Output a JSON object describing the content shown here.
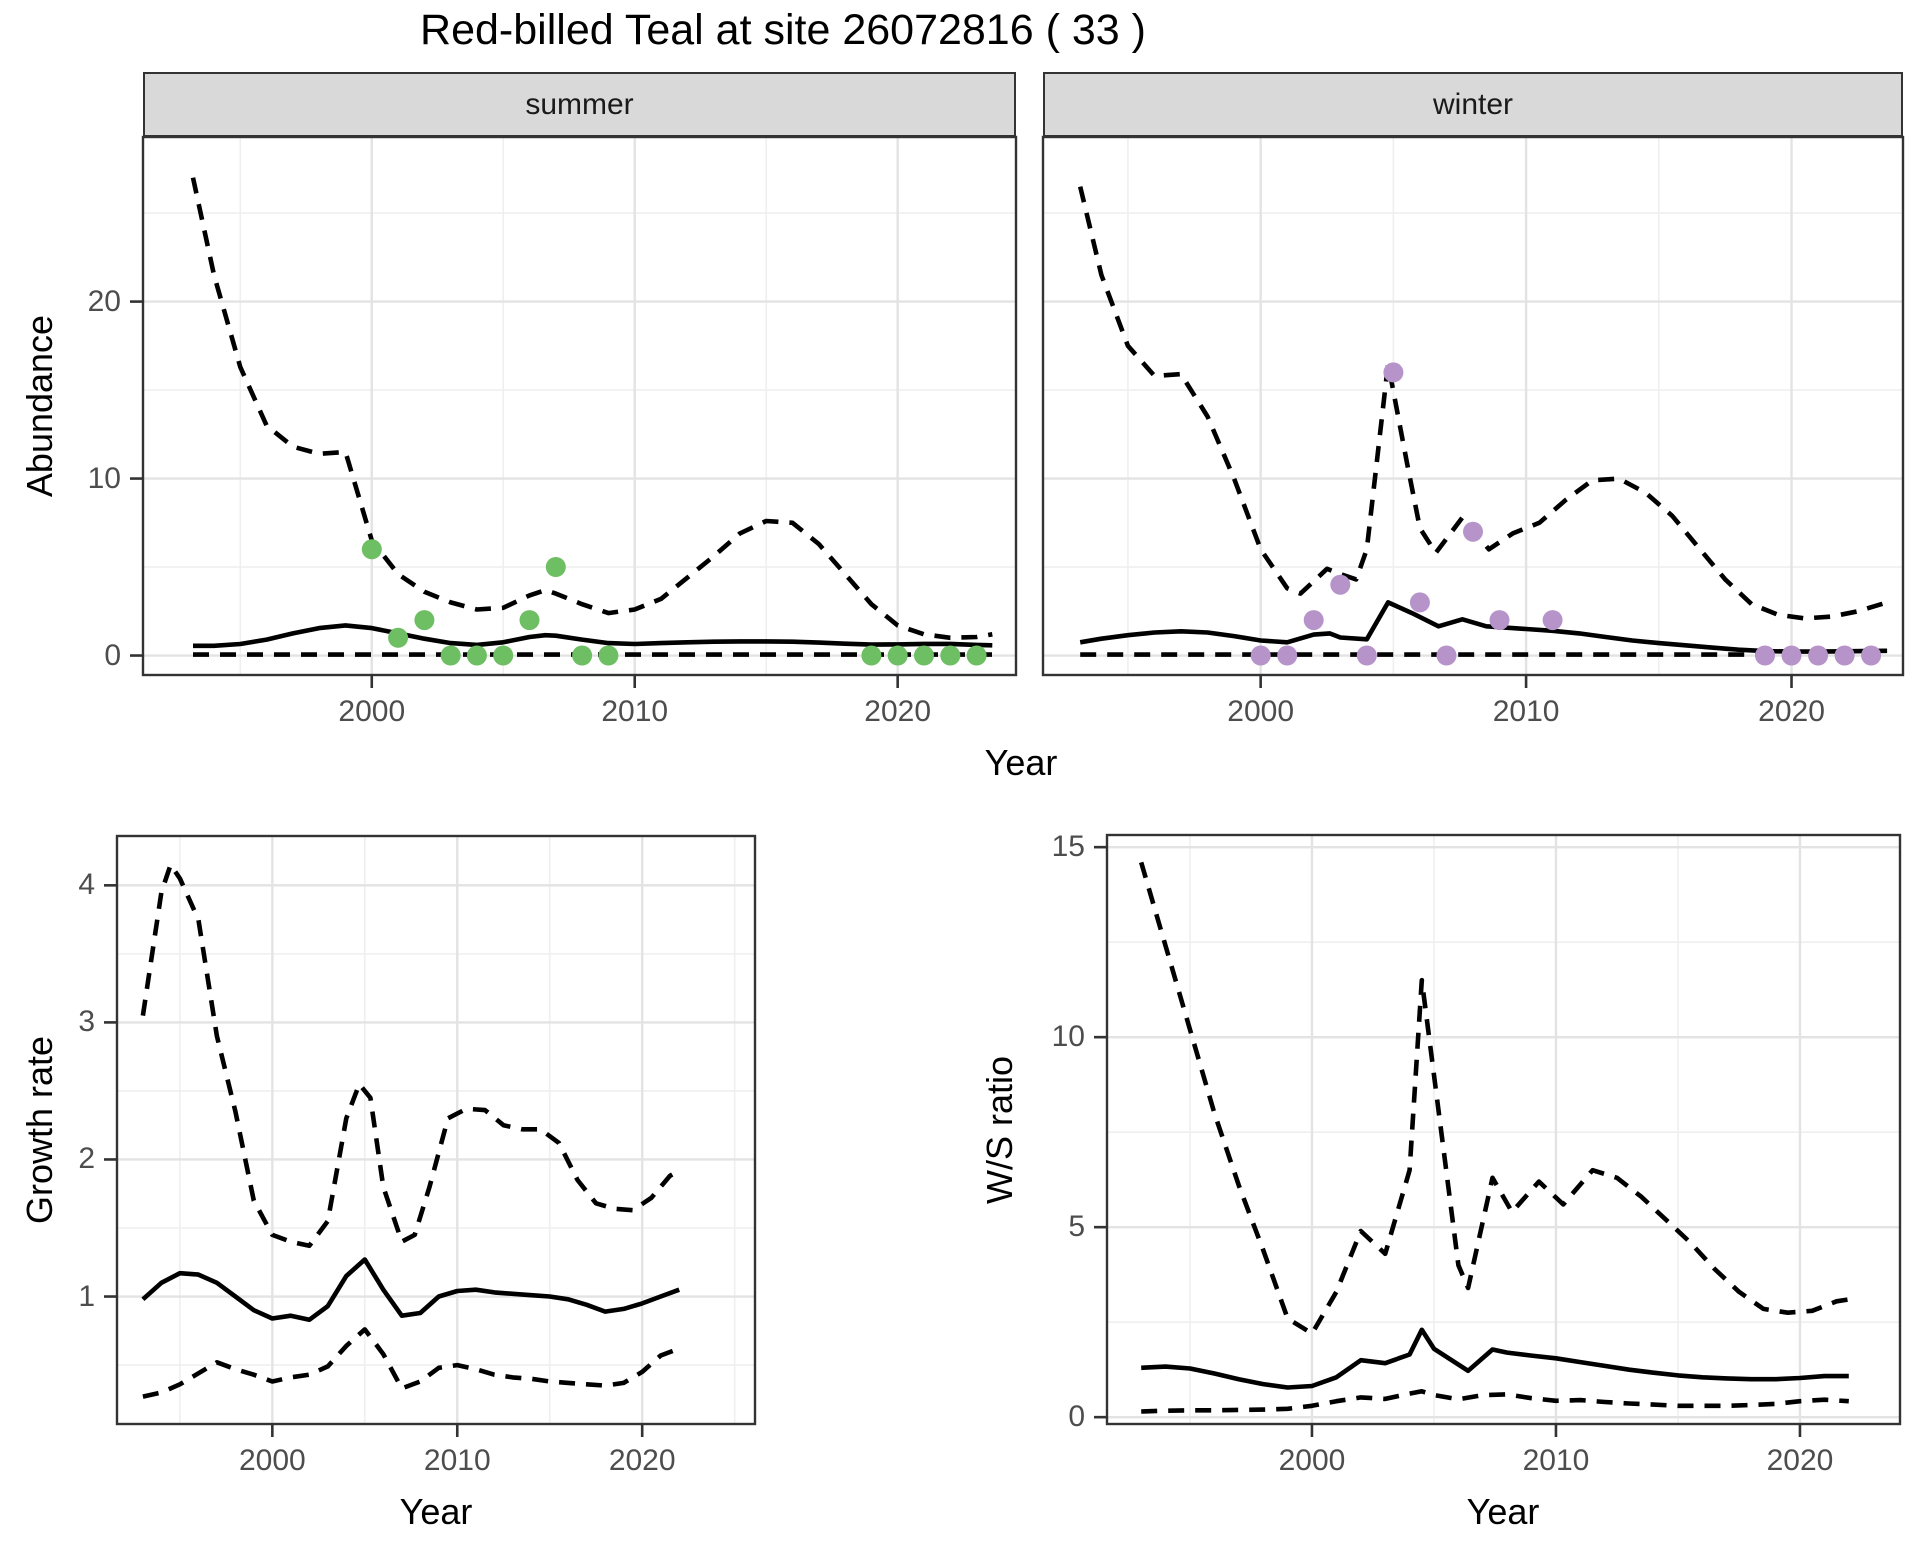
{
  "title": "Red-billed Teal at site 26072816 ( 33 )",
  "facets": {
    "summer_label": "summer",
    "winter_label": "winter"
  },
  "axis_titles": {
    "abundance": "Abundance",
    "growth": "Growth rate",
    "ws": "W/S ratio",
    "year": "Year"
  },
  "colors": {
    "summer_points": "#6EBE64",
    "winter_points": "#B694CA",
    "line": "#000000",
    "strip_bg": "#D9D9D9",
    "panel_border": "#333333",
    "grid_major": "#E3E3E3",
    "grid_minor": "#EFEFEF",
    "axis_text": "#4D4D4D",
    "tick_mark": "#333333"
  },
  "chart_data": [
    {
      "id": "abundance_summer",
      "type": "line",
      "facet": "summer",
      "xlabel": "Year",
      "ylabel": "Abundance",
      "xlim": [
        1991.3,
        2024.5
      ],
      "ylim": [
        -1.1,
        29.3
      ],
      "xticks": [
        2000,
        2010,
        2020
      ],
      "xticks_minor": [
        1995,
        2005,
        2015
      ],
      "yticks": [
        0,
        10,
        20
      ],
      "yticks_minor": [
        5,
        15,
        25
      ],
      "legend": "off",
      "grid": "on",
      "series": [
        {
          "name": "upper_ci",
          "linestyle": "dashed",
          "x": [
            1993.2,
            1994,
            1995,
            1996,
            1997,
            1998,
            1999,
            2000,
            2001,
            2002,
            2003,
            2004,
            2005,
            2006,
            2006.6,
            2007,
            2008,
            2009,
            2010,
            2011,
            2012,
            2013,
            2014,
            2015,
            2016,
            2017,
            2018,
            2019,
            2020,
            2021,
            2022,
            2023,
            2023.6
          ],
          "y": [
            27,
            21.5,
            16.3,
            13,
            11.8,
            11.4,
            11.5,
            6.5,
            4.6,
            3.6,
            3,
            2.6,
            2.7,
            3.4,
            3.7,
            3.5,
            2.9,
            2.4,
            2.6,
            3.2,
            4.4,
            5.6,
            6.9,
            7.6,
            7.5,
            6.3,
            4.6,
            2.9,
            1.7,
            1.2,
            1,
            1.05,
            1.2
          ]
        },
        {
          "name": "estimate",
          "linestyle": "solid",
          "x": [
            1993.2,
            1994,
            1995,
            1996,
            1997,
            1998,
            1999,
            2000,
            2001,
            2002,
            2003,
            2004,
            2005,
            2006,
            2006.6,
            2007,
            2008,
            2009,
            2010,
            2011,
            2012,
            2013,
            2014,
            2015,
            2016,
            2017,
            2018,
            2019,
            2020,
            2021,
            2022,
            2023,
            2023.6
          ],
          "y": [
            0.55,
            0.55,
            0.65,
            0.9,
            1.25,
            1.55,
            1.7,
            1.55,
            1.25,
            0.95,
            0.7,
            0.6,
            0.75,
            1.05,
            1.15,
            1.12,
            0.9,
            0.7,
            0.65,
            0.7,
            0.75,
            0.78,
            0.8,
            0.8,
            0.78,
            0.73,
            0.67,
            0.62,
            0.63,
            0.66,
            0.66,
            0.6,
            0.58
          ]
        },
        {
          "name": "lower_ci",
          "linestyle": "dashed",
          "x": [
            1993.2,
            2023.6
          ],
          "y": [
            0.05,
            0.05
          ]
        }
      ],
      "points": {
        "name": "observed_summer_counts",
        "color": "#6EBE64",
        "x": [
          2000,
          2001,
          2002,
          2003,
          2004,
          2005,
          2006,
          2007,
          2008,
          2009,
          2019,
          2020,
          2021,
          2022,
          2023
        ],
        "y": [
          6,
          1,
          2,
          0,
          0,
          0,
          2,
          5,
          0,
          0,
          0,
          0,
          0,
          0,
          0
        ]
      }
    },
    {
      "id": "abundance_winter",
      "type": "line",
      "facet": "winter",
      "xlabel": "Year",
      "ylabel": "Abundance",
      "xlim": [
        1991.8,
        2024.2
      ],
      "ylim": [
        -1.1,
        29.3
      ],
      "xticks": [
        2000,
        2010,
        2020
      ],
      "xticks_minor": [
        1995,
        2005,
        2015
      ],
      "yticks": [
        0,
        10,
        20
      ],
      "yticks_minor": [
        5,
        15,
        25
      ],
      "legend": "off",
      "grid": "on",
      "series": [
        {
          "name": "upper_ci",
          "linestyle": "dashed",
          "x": [
            1993.2,
            1994,
            1995,
            1996,
            1997,
            1998,
            1999,
            2000,
            2001,
            2001.5,
            2002.5,
            2003,
            2003.6,
            2004,
            2004.8,
            2005.5,
            2006,
            2006.6,
            2007.6,
            2008.6,
            2009.5,
            2010.5,
            2011.5,
            2012.5,
            2013.5,
            2014.5,
            2015.5,
            2016.5,
            2017.5,
            2018.5,
            2019.5,
            2020.5,
            2021.5,
            2022.5,
            2023.6
          ],
          "y": [
            26.5,
            21.5,
            17.5,
            15.8,
            15.9,
            13.5,
            10,
            6,
            3.8,
            3.5,
            4.9,
            4.6,
            4.3,
            6,
            16.5,
            11,
            7.2,
            5.8,
            7.8,
            6,
            6.9,
            7.5,
            8.8,
            9.9,
            10,
            9.2,
            7.9,
            6.1,
            4.3,
            2.9,
            2.3,
            2.1,
            2.2,
            2.5,
            3
          ]
        },
        {
          "name": "estimate",
          "linestyle": "solid",
          "x": [
            1993.2,
            1994,
            1995,
            1996,
            1997,
            1998,
            1999,
            2000,
            2001,
            2002,
            2002.6,
            2003,
            2004,
            2004.8,
            2005.7,
            2006.7,
            2007.6,
            2008.5,
            2009,
            2010,
            2011,
            2012,
            2013,
            2014,
            2015,
            2016,
            2017,
            2018,
            2019,
            2020,
            2021,
            2022,
            2023,
            2023.6
          ],
          "y": [
            0.75,
            0.95,
            1.15,
            1.3,
            1.37,
            1.3,
            1.1,
            0.85,
            0.75,
            1.18,
            1.25,
            1.02,
            0.92,
            3,
            2.4,
            1.65,
            2.05,
            1.65,
            1.6,
            1.5,
            1.4,
            1.25,
            1.05,
            0.85,
            0.7,
            0.58,
            0.45,
            0.33,
            0.25,
            0.22,
            0.22,
            0.24,
            0.26,
            0.27
          ]
        },
        {
          "name": "lower_ci",
          "linestyle": "dashed",
          "x": [
            1993.2,
            2023.6
          ],
          "y": [
            0.05,
            0.05
          ]
        }
      ],
      "points": {
        "name": "observed_winter_counts",
        "color": "#B694CA",
        "x": [
          2000,
          2001,
          2002,
          2003,
          2004,
          2005,
          2006,
          2007,
          2008,
          2009,
          2011,
          2019,
          2020,
          2021,
          2022,
          2023
        ],
        "y": [
          0,
          0,
          2,
          4,
          0,
          16,
          3,
          0,
          7,
          2,
          2,
          0,
          0,
          0,
          0,
          0
        ]
      }
    },
    {
      "id": "growth_rate",
      "type": "line",
      "facet": "",
      "xlabel": "Year",
      "ylabel": "Growth rate",
      "xlim": [
        1991.6,
        2026.1
      ],
      "ylim": [
        0.07,
        4.36
      ],
      "xticks": [
        2000,
        2010,
        2020
      ],
      "xticks_minor": [
        1995,
        2005,
        2015,
        2025
      ],
      "yticks": [
        1,
        2,
        3,
        4
      ],
      "yticks_minor": [
        0.5,
        1.5,
        2.5,
        3.5
      ],
      "legend": "off",
      "grid": "on",
      "series": [
        {
          "name": "upper_ci",
          "linestyle": "dashed",
          "x": [
            1993,
            1994,
            1994.5,
            1995,
            1996,
            1997,
            1998,
            1999,
            2000,
            2001,
            2002,
            2003,
            2004,
            2004.7,
            2005.3,
            2006,
            2007,
            2007.7,
            2008.5,
            2009.5,
            2010.5,
            2011.5,
            2012.5,
            2013.5,
            2014.5,
            2015.5,
            2016.5,
            2017.5,
            2018.5,
            2019.5,
            2020.5,
            2021.5,
            2022
          ],
          "y": [
            3.05,
            3.95,
            4.15,
            4.05,
            3.75,
            2.9,
            2.35,
            1.7,
            1.45,
            1.4,
            1.37,
            1.55,
            2.3,
            2.55,
            2.45,
            1.8,
            1.4,
            1.45,
            1.8,
            2.3,
            2.37,
            2.36,
            2.25,
            2.22,
            2.22,
            2.12,
            1.85,
            1.68,
            1.64,
            1.63,
            1.72,
            1.88,
            1.92
          ]
        },
        {
          "name": "estimate",
          "linestyle": "solid",
          "x": [
            1993,
            1994,
            1995,
            1996,
            1997,
            1998,
            1999,
            2000,
            2001,
            2002,
            2003,
            2004,
            2005,
            2006,
            2007,
            2008,
            2009,
            2010,
            2011,
            2012,
            2013,
            2014,
            2015,
            2016,
            2017,
            2018,
            2019,
            2020,
            2021,
            2022
          ],
          "y": [
            0.98,
            1.1,
            1.17,
            1.16,
            1.1,
            1.0,
            0.9,
            0.84,
            0.86,
            0.83,
            0.93,
            1.15,
            1.27,
            1.05,
            0.86,
            0.88,
            1.0,
            1.04,
            1.05,
            1.03,
            1.02,
            1.01,
            1.0,
            0.98,
            0.94,
            0.89,
            0.91,
            0.95,
            1.0,
            1.05
          ]
        },
        {
          "name": "lower_ci",
          "linestyle": "dashed",
          "x": [
            1993,
            1994,
            1995,
            1996,
            1997,
            1998,
            1999,
            2000,
            2001,
            2002,
            2003,
            2004,
            2005,
            2006,
            2007,
            2008,
            2009,
            2010,
            2011,
            2012,
            2013,
            2014,
            2015,
            2016,
            2017,
            2018,
            2019,
            2020,
            2021,
            2022
          ],
          "y": [
            0.27,
            0.3,
            0.36,
            0.44,
            0.52,
            0.47,
            0.43,
            0.38,
            0.41,
            0.43,
            0.49,
            0.64,
            0.76,
            0.58,
            0.33,
            0.38,
            0.48,
            0.5,
            0.47,
            0.43,
            0.41,
            0.4,
            0.38,
            0.37,
            0.36,
            0.35,
            0.37,
            0.45,
            0.57,
            0.62
          ]
        }
      ],
      "points": null
    },
    {
      "id": "ws_ratio",
      "type": "line",
      "facet": "",
      "xlabel": "Year",
      "ylabel": "W/S ratio",
      "xlim": [
        1991.6,
        2024.1
      ],
      "ylim": [
        -0.18,
        15.32
      ],
      "xticks": [
        2000,
        2010,
        2020
      ],
      "xticks_minor": [
        1995,
        2005,
        2015
      ],
      "yticks": [
        0,
        5,
        10,
        15
      ],
      "yticks_minor": [
        2.5,
        7.5,
        12.5
      ],
      "legend": "off",
      "grid": "on",
      "series": [
        {
          "name": "upper_ci",
          "linestyle": "dashed",
          "x": [
            1993,
            1994,
            1995,
            1996,
            1997,
            1998,
            1999,
            2000,
            2001,
            2002,
            2003,
            2004,
            2004.5,
            2005,
            2006,
            2006.4,
            2007.4,
            2008.2,
            2009.3,
            2010.3,
            2011.5,
            2012.5,
            2013.5,
            2014.5,
            2015.5,
            2016.5,
            2017.5,
            2018.5,
            2019.5,
            2020.5,
            2021.5,
            2022
          ],
          "y": [
            14.6,
            12.4,
            10.2,
            8,
            6.1,
            4.4,
            2.6,
            2.2,
            3.3,
            4.9,
            4.3,
            6.5,
            11.5,
            9,
            4,
            3.4,
            6.3,
            5.4,
            6.2,
            5.6,
            6.5,
            6.3,
            5.8,
            5.2,
            4.6,
            3.9,
            3.3,
            2.85,
            2.75,
            2.8,
            3.05,
            3.1
          ]
        },
        {
          "name": "estimate",
          "linestyle": "solid",
          "x": [
            1993,
            1994,
            1995,
            1996,
            1997,
            1998,
            1999,
            2000,
            2001,
            2002,
            2003,
            2004,
            2004.5,
            2005,
            2006.4,
            2007.4,
            2008,
            2009,
            2010,
            2011,
            2012,
            2013,
            2014,
            2015,
            2016,
            2017,
            2018,
            2019,
            2020,
            2021,
            2022
          ],
          "y": [
            1.3,
            1.33,
            1.28,
            1.15,
            1,
            0.87,
            0.78,
            0.82,
            1.05,
            1.5,
            1.42,
            1.65,
            2.3,
            1.8,
            1.22,
            1.78,
            1.7,
            1.62,
            1.55,
            1.45,
            1.35,
            1.25,
            1.17,
            1.1,
            1.05,
            1.02,
            1,
            1,
            1.03,
            1.08,
            1.08
          ]
        },
        {
          "name": "lower_ci",
          "linestyle": "dashed",
          "x": [
            1993,
            1994,
            1995,
            1996,
            1997,
            1998,
            1999,
            2000,
            2001,
            2002,
            2003,
            2004,
            2004.5,
            2005,
            2006,
            2007,
            2008,
            2009,
            2010,
            2011,
            2012,
            2013,
            2014,
            2015,
            2016,
            2017,
            2018,
            2019,
            2020,
            2021,
            2022
          ],
          "y": [
            0.15,
            0.17,
            0.18,
            0.18,
            0.19,
            0.2,
            0.22,
            0.3,
            0.42,
            0.52,
            0.48,
            0.62,
            0.68,
            0.58,
            0.47,
            0.58,
            0.6,
            0.5,
            0.43,
            0.45,
            0.4,
            0.36,
            0.33,
            0.3,
            0.3,
            0.3,
            0.32,
            0.35,
            0.42,
            0.46,
            0.42
          ]
        }
      ],
      "points": null
    }
  ]
}
